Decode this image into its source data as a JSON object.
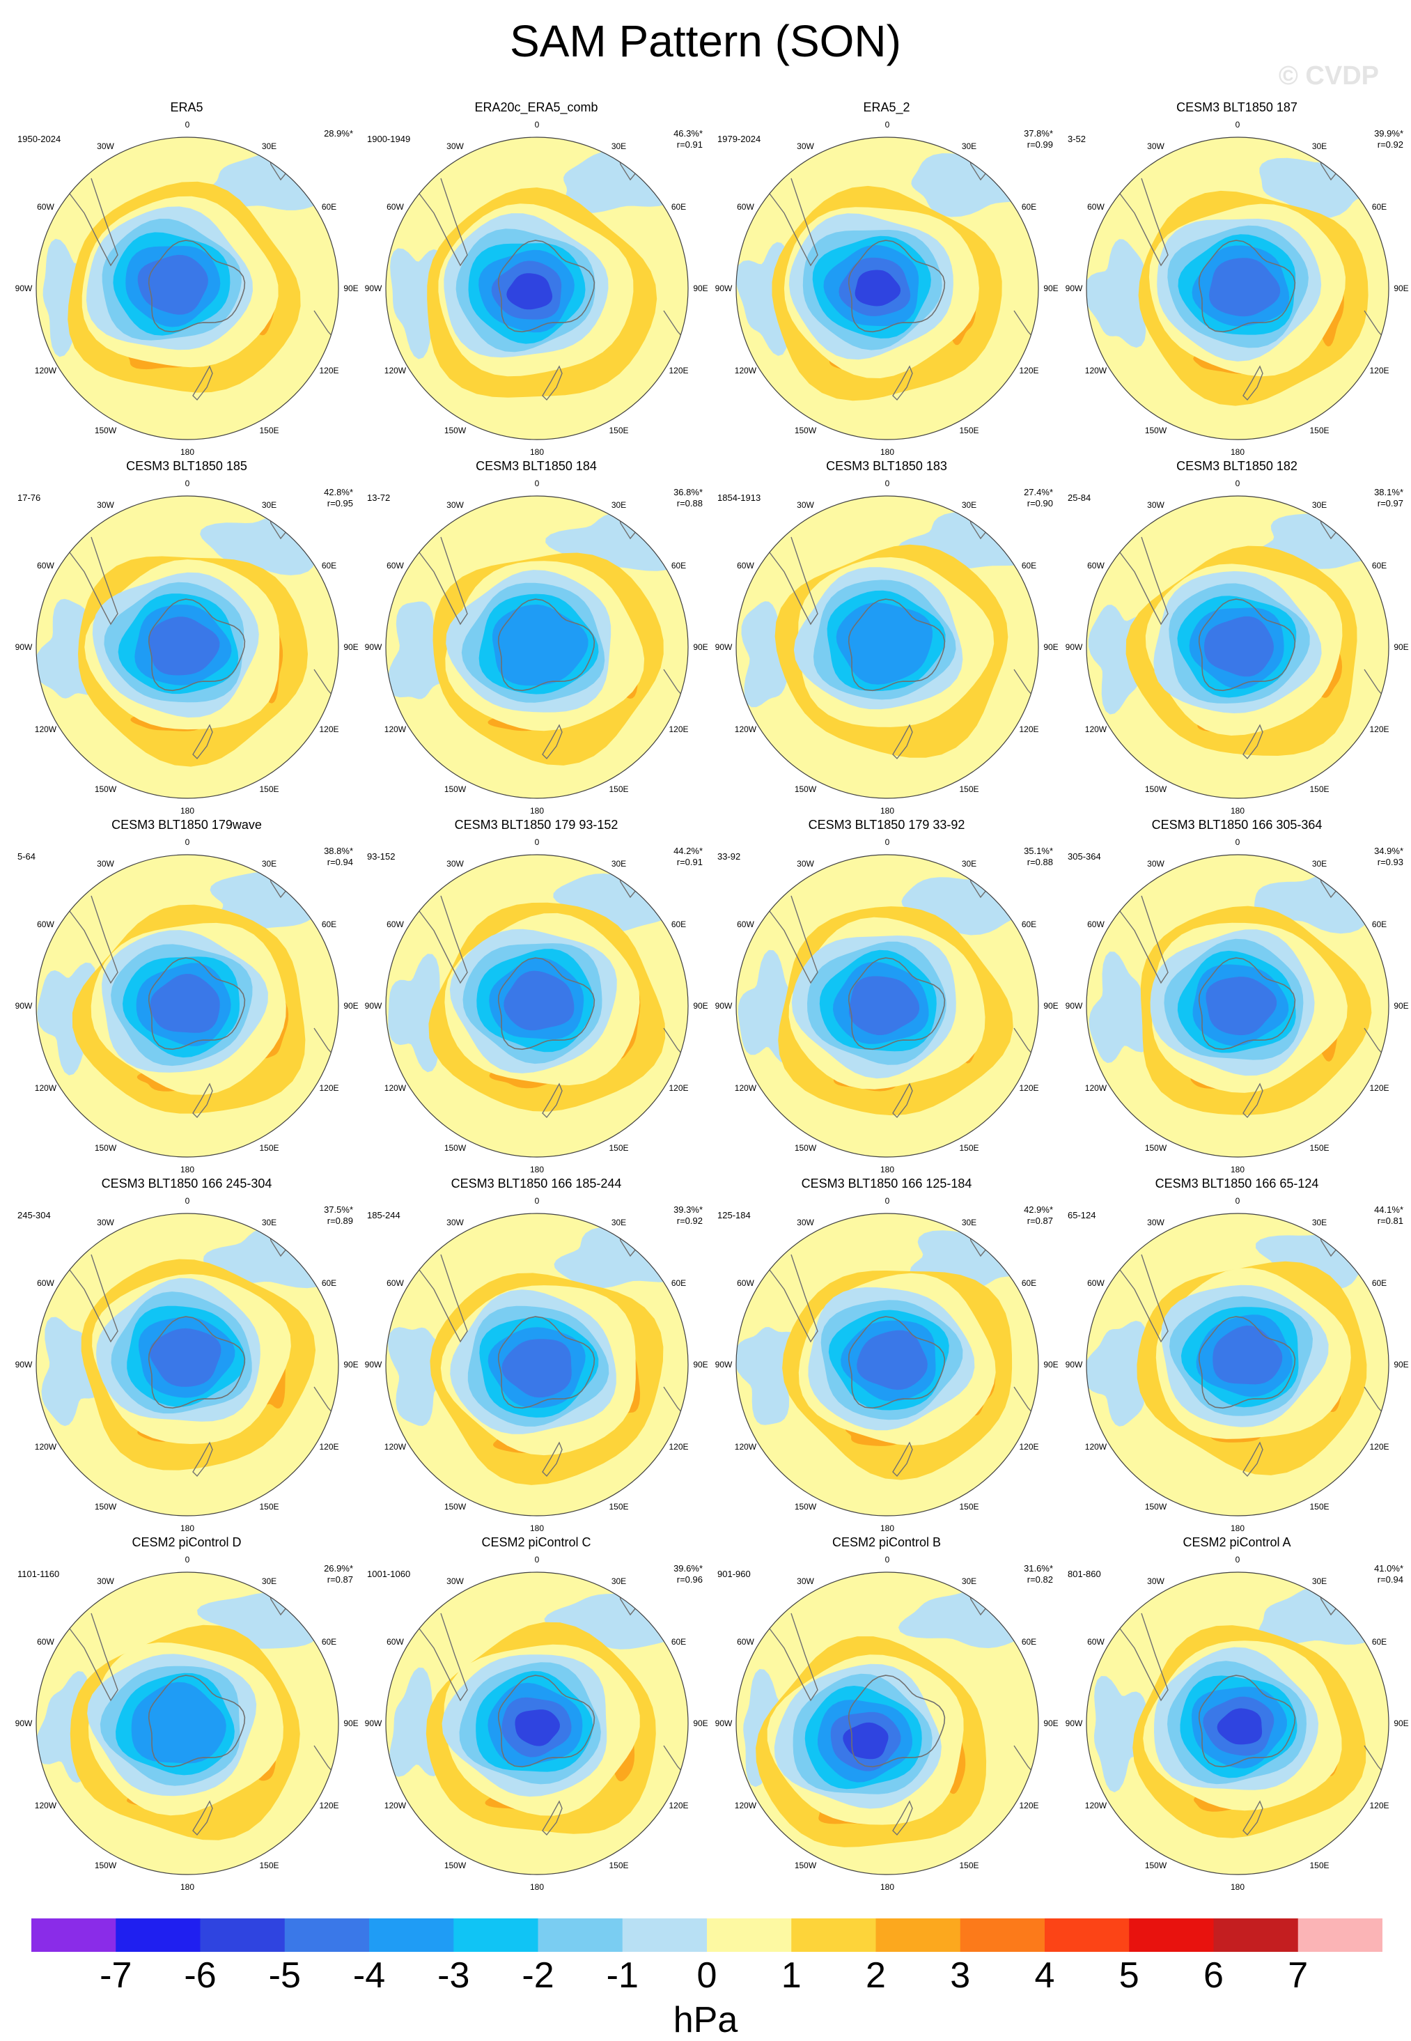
{
  "page": {
    "title": "SAM Pattern (SON)",
    "watermark": "© CVDP",
    "units": "hPa"
  },
  "colorbar": {
    "colors": [
      "#8a2ce8",
      "#1f1ff0",
      "#2f44e0",
      "#3a78e8",
      "#1f9cf5",
      "#10c4f5",
      "#7acdf2",
      "#b8e0f4",
      "#fdf9a2",
      "#fdd43a",
      "#fca81e",
      "#fc7a1a",
      "#fc4416",
      "#e8120e",
      "#c41e20",
      "#fbb4b6"
    ],
    "ticks": [
      "-7",
      "-6",
      "-5",
      "-4",
      "-3",
      "-2",
      "-1",
      "0",
      "1",
      "2",
      "3",
      "4",
      "5",
      "6",
      "7"
    ]
  },
  "lon_labels": [
    "0",
    "30E",
    "60E",
    "90E",
    "120E",
    "150E",
    "180",
    "150W",
    "120W",
    "90W",
    "60W",
    "30W"
  ],
  "panels": [
    {
      "title": "ERA5",
      "period": "1950-2024",
      "pct": "28.9%*",
      "r": ""
    },
    {
      "title": "ERA20c_ERA5_comb",
      "period": "1900-1949",
      "pct": "46.3%*",
      "r": "r=0.91"
    },
    {
      "title": "ERA5_2",
      "period": "1979-2024",
      "pct": "37.8%*",
      "r": "r=0.99"
    },
    {
      "title": "CESM3 BLT1850 187",
      "period": "3-52",
      "pct": "39.9%*",
      "r": "r=0.92"
    },
    {
      "title": "CESM3 BLT1850 185",
      "period": "17-76",
      "pct": "42.8%*",
      "r": "r=0.95"
    },
    {
      "title": "CESM3 BLT1850 184",
      "period": "13-72",
      "pct": "36.8%*",
      "r": "r=0.88"
    },
    {
      "title": "CESM3 BLT1850 183",
      "period": "1854-1913",
      "pct": "27.4%*",
      "r": "r=0.90"
    },
    {
      "title": "CESM3 BLT1850 182",
      "period": "25-84",
      "pct": "38.1%*",
      "r": "r=0.97"
    },
    {
      "title": "CESM3 BLT1850 179wave",
      "period": "5-64",
      "pct": "38.8%*",
      "r": "r=0.94"
    },
    {
      "title": "CESM3 BLT1850 179 93-152",
      "period": "93-152",
      "pct": "44.2%*",
      "r": "r=0.91"
    },
    {
      "title": "CESM3 BLT1850 179 33-92",
      "period": "33-92",
      "pct": "35.1%*",
      "r": "r=0.88"
    },
    {
      "title": "CESM3 BLT1850 166 305-364",
      "period": "305-364",
      "pct": "34.9%*",
      "r": "r=0.93"
    },
    {
      "title": "CESM3 BLT1850 166 245-304",
      "period": "245-304",
      "pct": "37.5%*",
      "r": "r=0.89"
    },
    {
      "title": "CESM3 BLT1850 166 185-244",
      "period": "185-244",
      "pct": "39.3%*",
      "r": "r=0.92"
    },
    {
      "title": "CESM3 BLT1850 166 125-184",
      "period": "125-184",
      "pct": "42.9%*",
      "r": "r=0.87"
    },
    {
      "title": "CESM3 BLT1850 166 65-124",
      "period": "65-124",
      "pct": "44.1%*",
      "r": "r=0.81"
    },
    {
      "title": "CESM2 piControl D",
      "period": "1101-1160",
      "pct": "26.9%*",
      "r": "r=0.87"
    },
    {
      "title": "CESM2 piControl C",
      "period": "1001-1060",
      "pct": "39.6%*",
      "r": "r=0.96"
    },
    {
      "title": "CESM2 piControl B",
      "period": "901-960",
      "pct": "31.6%*",
      "r": "r=0.82"
    },
    {
      "title": "CESM2 piControl A",
      "period": "801-860",
      "pct": "41.0%*",
      "r": "r=0.94"
    }
  ]
}
